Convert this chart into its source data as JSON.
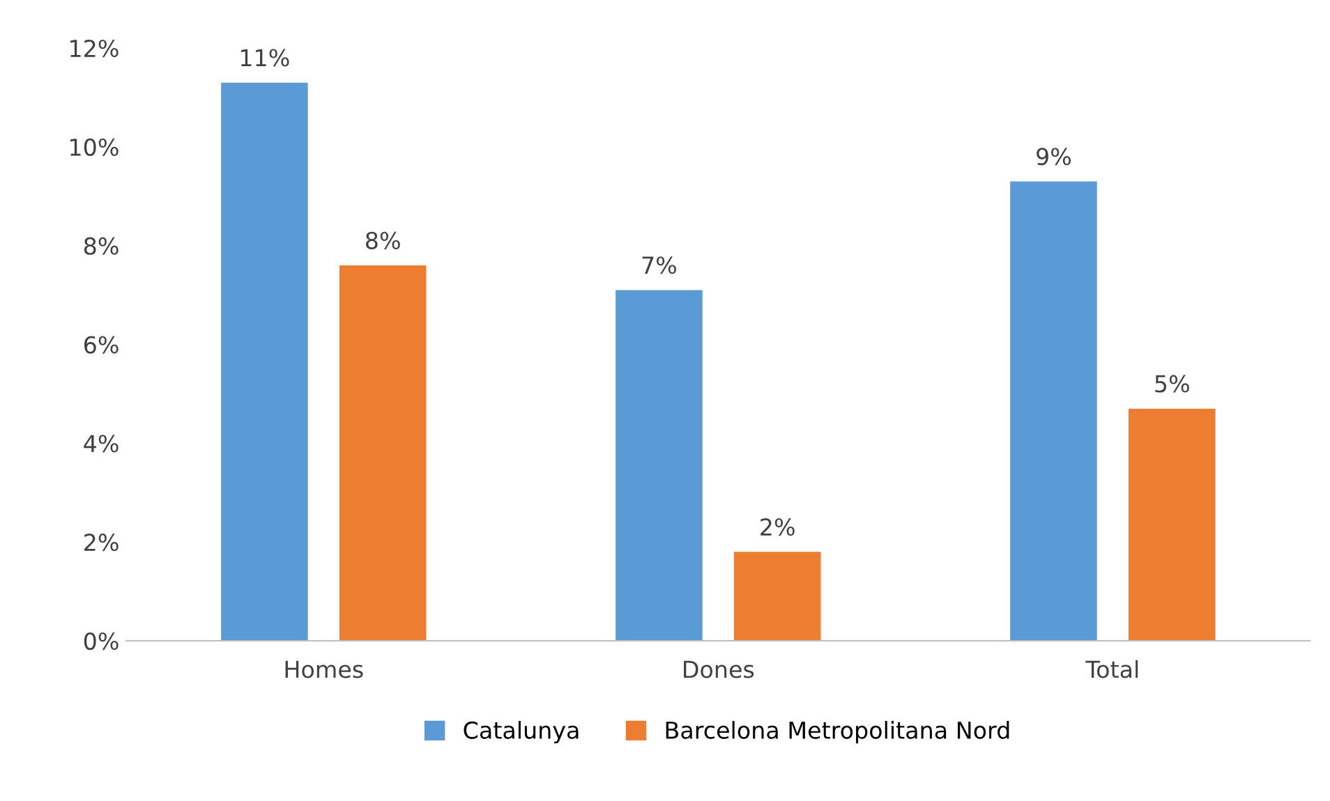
{
  "chart_data": {
    "type": "bar",
    "categories": [
      "Homes",
      "Dones",
      "Total"
    ],
    "series": [
      {
        "name": "Catalunya",
        "color": "#5b9bd5",
        "values": [
          11.3,
          7.1,
          9.3
        ],
        "value_labels": [
          "11%",
          "7%",
          "9%"
        ]
      },
      {
        "name": "Barcelona Metropolitana Nord",
        "color": "#ed7d31",
        "values": [
          7.6,
          1.8,
          4.7
        ],
        "value_labels": [
          "8%",
          "2%",
          "5%"
        ]
      }
    ],
    "ylim": [
      0,
      12
    ],
    "yticks": [
      {
        "value": 0,
        "label": "0%"
      },
      {
        "value": 2,
        "label": "2%"
      },
      {
        "value": 4,
        "label": "4%"
      },
      {
        "value": 6,
        "label": "6%"
      },
      {
        "value": 8,
        "label": "8%"
      },
      {
        "value": 10,
        "label": "10%"
      },
      {
        "value": 12,
        "label": "12%"
      }
    ],
    "grid": false,
    "legend": "bottom"
  }
}
